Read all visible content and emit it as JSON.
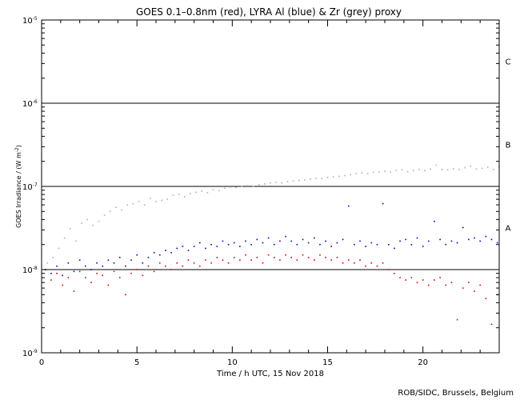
{
  "chart_data": {
    "type": "scatter",
    "title": "GOES 0.1–0.8nm (red), LYRA Al (blue) & Zr (grey) proxy",
    "xlabel": "Time / h UTC, 15 Nov 2018",
    "ylabel": "GOES Irradiance / (W m",
    "ylabel_exp": "-2",
    "ylabel_close": ")",
    "credit": "ROB/SIDC, Brussels, Belgium",
    "xlim": [
      0,
      24
    ],
    "ylim": [
      1e-09,
      1e-05
    ],
    "yscale": "log",
    "x_ticks": [
      {
        "v": 0,
        "label": "0"
      },
      {
        "v": 5,
        "label": "5"
      },
      {
        "v": 10,
        "label": "10"
      },
      {
        "v": 15,
        "label": "15"
      },
      {
        "v": 20,
        "label": "20"
      }
    ],
    "y_ticks": [
      {
        "v": 1e-05,
        "base": "10",
        "exp": "-5"
      },
      {
        "v": 1e-06,
        "base": "10",
        "exp": "-6"
      },
      {
        "v": 1e-07,
        "base": "10",
        "exp": "-7"
      },
      {
        "v": 1e-08,
        "base": "10",
        "exp": "-8"
      },
      {
        "v": 1e-09,
        "base": "10",
        "exp": "-9"
      }
    ],
    "flare_class_lines": [
      1e-06,
      1e-07,
      1e-08
    ],
    "flare_class_labels": [
      {
        "label": "C",
        "y": 3.2e-06
      },
      {
        "label": "B",
        "y": 3.2e-07
      },
      {
        "label": "A",
        "y": 3.2e-08
      }
    ],
    "series": [
      {
        "color": "#b0b0b0",
        "marker": "dot",
        "points": [
          [
            0.3,
            1.2e-08
          ],
          [
            0.6,
            1.4e-08
          ],
          [
            0.9,
            1.8e-08
          ],
          [
            1.2,
            2.4e-08
          ],
          [
            1.5,
            3.1e-08
          ],
          [
            1.8,
            2.2e-08
          ],
          [
            2.1,
            3.6e-08
          ],
          [
            2.4,
            4e-08
          ],
          [
            2.7,
            3.4e-08
          ],
          [
            3.0,
            3.8e-08
          ],
          [
            3.3,
            4.5e-08
          ],
          [
            3.6,
            5e-08
          ],
          [
            3.9,
            5.6e-08
          ],
          [
            4.2,
            5.2e-08
          ],
          [
            4.5,
            6e-08
          ],
          [
            4.8,
            6.2e-08
          ],
          [
            5.1,
            6.6e-08
          ],
          [
            5.4,
            6e-08
          ],
          [
            5.7,
            7.2e-08
          ],
          [
            6.0,
            6.6e-08
          ],
          [
            6.3,
            6.8e-08
          ],
          [
            6.6,
            7e-08
          ],
          [
            6.9,
            7.8e-08
          ],
          [
            7.2,
            8e-08
          ],
          [
            7.5,
            7.5e-08
          ],
          [
            7.8,
            8.2e-08
          ],
          [
            8.1,
            8.5e-08
          ],
          [
            8.4,
            8.8e-08
          ],
          [
            8.7,
            8.4e-08
          ],
          [
            9.0,
            9.2e-08
          ],
          [
            9.3,
            8.9e-08
          ],
          [
            9.6,
            9.5e-08
          ],
          [
            9.9,
            9.8e-08
          ],
          [
            10.2,
            9.7e-08
          ],
          [
            10.5,
            1e-07
          ],
          [
            10.8,
            1.02e-07
          ],
          [
            11.1,
            1e-07
          ],
          [
            11.4,
            1.05e-07
          ],
          [
            11.7,
            1.07e-07
          ],
          [
            12.0,
            1.1e-07
          ],
          [
            12.3,
            1.12e-07
          ],
          [
            12.6,
            1.1e-07
          ],
          [
            12.9,
            1.14e-07
          ],
          [
            13.2,
            1.16e-07
          ],
          [
            13.5,
            1.18e-07
          ],
          [
            13.8,
            1.2e-07
          ],
          [
            14.1,
            1.22e-07
          ],
          [
            14.4,
            1.25e-07
          ],
          [
            14.7,
            1.24e-07
          ],
          [
            15.0,
            1.28e-07
          ],
          [
            15.3,
            1.3e-07
          ],
          [
            15.6,
            1.32e-07
          ],
          [
            15.9,
            1.35e-07
          ],
          [
            16.2,
            1.38e-07
          ],
          [
            16.5,
            1.42e-07
          ],
          [
            16.8,
            1.45e-07
          ],
          [
            17.1,
            1.43e-07
          ],
          [
            17.4,
            1.48e-07
          ],
          [
            17.7,
            1.5e-07
          ],
          [
            18.0,
            1.52e-07
          ],
          [
            18.3,
            1.48e-07
          ],
          [
            18.6,
            1.55e-07
          ],
          [
            18.9,
            1.58e-07
          ],
          [
            19.2,
            1.5e-07
          ],
          [
            19.5,
            1.55e-07
          ],
          [
            19.8,
            1.6e-07
          ],
          [
            20.1,
            1.55e-07
          ],
          [
            20.4,
            1.62e-07
          ],
          [
            20.7,
            1.8e-07
          ],
          [
            21.0,
            1.6e-07
          ],
          [
            21.3,
            1.58e-07
          ],
          [
            21.6,
            1.62e-07
          ],
          [
            21.9,
            1.6e-07
          ],
          [
            22.2,
            1.68e-07
          ],
          [
            22.5,
            1.75e-07
          ],
          [
            22.8,
            1.62e-07
          ],
          [
            23.1,
            1.65e-07
          ],
          [
            23.4,
            1.7e-07
          ],
          [
            23.7,
            1.6e-07
          ],
          [
            24.0,
            1.72e-07
          ]
        ]
      },
      {
        "color": "#0000c8",
        "marker": "dot",
        "points": [
          [
            0.2,
            1e-08
          ],
          [
            0.5,
            9e-09
          ],
          [
            0.8,
            1.1e-08
          ],
          [
            1.1,
            8.5e-09
          ],
          [
            1.4,
            1.2e-08
          ],
          [
            1.7,
            9.5e-09
          ],
          [
            2.0,
            1.3e-08
          ],
          [
            2.3,
            1.1e-08
          ],
          [
            2.6,
            1e-08
          ],
          [
            2.9,
            1.2e-08
          ],
          [
            3.2,
            1.1e-08
          ],
          [
            3.5,
            1.3e-08
          ],
          [
            3.8,
            1.2e-08
          ],
          [
            4.1,
            1.4e-08
          ],
          [
            4.4,
            1.1e-08
          ],
          [
            4.7,
            1.3e-08
          ],
          [
            5.0,
            1.5e-08
          ],
          [
            5.3,
            1.2e-08
          ],
          [
            5.6,
            1.4e-08
          ],
          [
            5.9,
            1.6e-08
          ],
          [
            6.2,
            1.5e-08
          ],
          [
            6.5,
            1.7e-08
          ],
          [
            6.8,
            1.6e-08
          ],
          [
            7.1,
            1.8e-08
          ],
          [
            7.4,
            1.9e-08
          ],
          [
            7.7,
            1.7e-08
          ],
          [
            8.0,
            1.9e-08
          ],
          [
            8.3,
            2.1e-08
          ],
          [
            8.6,
            1.8e-08
          ],
          [
            8.9,
            2e-08
          ],
          [
            9.2,
            1.9e-08
          ],
          [
            9.5,
            2.2e-08
          ],
          [
            9.8,
            2e-08
          ],
          [
            10.1,
            2.1e-08
          ],
          [
            10.4,
            1.9e-08
          ],
          [
            10.7,
            2.2e-08
          ],
          [
            11.0,
            2e-08
          ],
          [
            11.3,
            2.3e-08
          ],
          [
            11.6,
            2.1e-08
          ],
          [
            11.9,
            2.4e-08
          ],
          [
            12.2,
            2e-08
          ],
          [
            12.5,
            2.2e-08
          ],
          [
            12.8,
            2.5e-08
          ],
          [
            13.1,
            2.2e-08
          ],
          [
            13.4,
            2e-08
          ],
          [
            13.7,
            2.3e-08
          ],
          [
            14.0,
            2.1e-08
          ],
          [
            14.3,
            2.4e-08
          ],
          [
            14.6,
            2e-08
          ],
          [
            14.9,
            2.2e-08
          ],
          [
            15.2,
            1.9e-08
          ],
          [
            15.5,
            2.1e-08
          ],
          [
            15.8,
            2.3e-08
          ],
          [
            16.1,
            5.8e-08
          ],
          [
            16.4,
            2e-08
          ],
          [
            16.7,
            2.2e-08
          ],
          [
            17.0,
            1.9e-08
          ],
          [
            17.3,
            2.1e-08
          ],
          [
            17.6,
            2e-08
          ],
          [
            17.9,
            6.2e-08
          ],
          [
            18.2,
            2e-08
          ],
          [
            18.5,
            1.8e-08
          ],
          [
            18.8,
            2.2e-08
          ],
          [
            19.1,
            2.3e-08
          ],
          [
            19.4,
            2e-08
          ],
          [
            19.7,
            2.4e-08
          ],
          [
            20.0,
            1.9e-08
          ],
          [
            20.3,
            2.2e-08
          ],
          [
            20.6,
            3.8e-08
          ],
          [
            20.9,
            2.3e-08
          ],
          [
            21.2,
            2e-08
          ],
          [
            21.5,
            2.2e-08
          ],
          [
            21.8,
            2.1e-08
          ],
          [
            22.1,
            3.2e-08
          ],
          [
            22.4,
            2.3e-08
          ],
          [
            22.7,
            2.4e-08
          ],
          [
            23.0,
            2.2e-08
          ],
          [
            23.3,
            2.5e-08
          ],
          [
            23.6,
            2.3e-08
          ],
          [
            23.9,
            2.1e-08
          ]
        ]
      },
      {
        "color": "#e00000",
        "marker": "dot",
        "points": [
          [
            0.2,
            1e-08
          ],
          [
            0.5,
            7.5e-09
          ],
          [
            0.8,
            9e-09
          ],
          [
            1.1,
            6.5e-09
          ],
          [
            1.4,
            8e-09
          ],
          [
            1.7,
            5.5e-09
          ],
          [
            2.0,
            9.5e-09
          ],
          [
            2.3,
            8e-09
          ],
          [
            2.6,
            7e-09
          ],
          [
            2.9,
            9e-09
          ],
          [
            3.2,
            8.5e-09
          ],
          [
            3.5,
            6.5e-09
          ],
          [
            3.8,
            9.5e-09
          ],
          [
            4.1,
            8e-09
          ],
          [
            4.4,
            5e-09
          ],
          [
            4.7,
            9e-09
          ],
          [
            5.0,
            1e-08
          ],
          [
            5.3,
            8.5e-09
          ],
          [
            5.6,
            1.1e-08
          ],
          [
            5.9,
            9.5e-09
          ],
          [
            6.2,
            1.2e-08
          ],
          [
            6.5,
            1.1e-08
          ],
          [
            6.8,
            1e-08
          ],
          [
            7.1,
            1.2e-08
          ],
          [
            7.4,
            1.1e-08
          ],
          [
            7.7,
            1.3e-08
          ],
          [
            8.0,
            1.2e-08
          ],
          [
            8.3,
            1.1e-08
          ],
          [
            8.6,
            1.3e-08
          ],
          [
            8.9,
            1.2e-08
          ],
          [
            9.2,
            1.4e-08
          ],
          [
            9.5,
            1.3e-08
          ],
          [
            9.8,
            1.2e-08
          ],
          [
            10.1,
            1.4e-08
          ],
          [
            10.4,
            1.3e-08
          ],
          [
            10.7,
            1.5e-08
          ],
          [
            11.0,
            1.3e-08
          ],
          [
            11.3,
            1.4e-08
          ],
          [
            11.6,
            1.2e-08
          ],
          [
            11.9,
            1.5e-08
          ],
          [
            12.2,
            1.4e-08
          ],
          [
            12.5,
            1.3e-08
          ],
          [
            12.8,
            1.5e-08
          ],
          [
            13.1,
            1.4e-08
          ],
          [
            13.4,
            1.3e-08
          ],
          [
            13.7,
            1.5e-08
          ],
          [
            14.0,
            1.4e-08
          ],
          [
            14.3,
            1.3e-08
          ],
          [
            14.6,
            1.5e-08
          ],
          [
            14.9,
            1.4e-08
          ],
          [
            15.2,
            1.3e-08
          ],
          [
            15.5,
            1.4e-08
          ],
          [
            15.8,
            1.2e-08
          ],
          [
            16.1,
            1.3e-08
          ],
          [
            16.4,
            1.2e-08
          ],
          [
            16.7,
            1.3e-08
          ],
          [
            17.0,
            1.1e-08
          ],
          [
            17.3,
            1.2e-08
          ],
          [
            17.6,
            1.1e-08
          ],
          [
            17.9,
            1.2e-08
          ],
          [
            18.2,
            1e-08
          ],
          [
            18.5,
            9e-09
          ],
          [
            18.8,
            8e-09
          ],
          [
            19.1,
            7.5e-09
          ],
          [
            19.4,
            8e-09
          ],
          [
            19.7,
            7e-09
          ],
          [
            20.0,
            7.5e-09
          ],
          [
            20.3,
            6.5e-09
          ],
          [
            20.6,
            7.5e-09
          ],
          [
            20.9,
            8e-09
          ],
          [
            21.2,
            6.5e-09
          ],
          [
            21.5,
            7e-09
          ],
          [
            21.8,
            2.5e-09
          ],
          [
            22.1,
            6e-09
          ],
          [
            22.4,
            7e-09
          ],
          [
            22.7,
            5.5e-09
          ],
          [
            23.0,
            6.5e-09
          ],
          [
            23.3,
            4.5e-09
          ],
          [
            23.6,
            2.2e-09
          ],
          [
            23.9,
            5e-09
          ]
        ]
      }
    ]
  }
}
